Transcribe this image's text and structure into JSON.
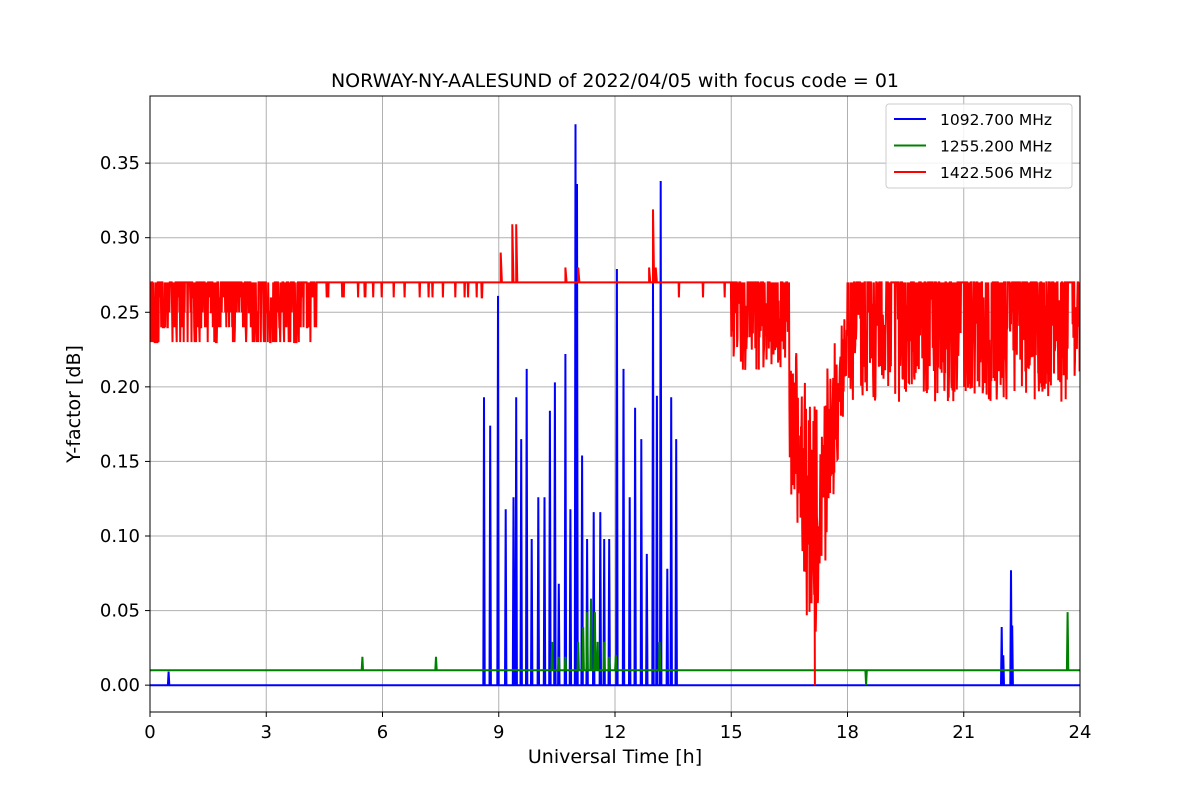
{
  "chart_data": {
    "type": "line",
    "title": "NORWAY-NY-AALESUND of 2022/04/05 with focus code = 01",
    "xlabel": "Universal Time [h]",
    "ylabel": "Y-factor [dB]",
    "xlim": [
      0,
      24
    ],
    "ylim": [
      -0.018,
      0.395
    ],
    "xticks": [
      0,
      3,
      6,
      9,
      12,
      15,
      18,
      21,
      24
    ],
    "xtick_labels": [
      "0",
      "3",
      "6",
      "9",
      "12",
      "15",
      "18",
      "21",
      "24"
    ],
    "yticks": [
      0.0,
      0.05,
      0.1,
      0.15,
      0.2,
      0.25,
      0.3,
      0.35
    ],
    "ytick_labels": [
      "0.00",
      "0.05",
      "0.10",
      "0.15",
      "0.20",
      "0.25",
      "0.30",
      "0.35"
    ],
    "grid": true,
    "legend_position": "top-right",
    "series": [
      {
        "name": "1092.700 MHz",
        "color": "#0000ff",
        "baseline": 0.0,
        "spikes": [
          [
            0.48,
            0.009
          ],
          [
            8.62,
            0.193
          ],
          [
            8.78,
            0.174
          ],
          [
            8.98,
            0.261
          ],
          [
            9.18,
            0.118
          ],
          [
            9.38,
            0.126
          ],
          [
            9.45,
            0.193
          ],
          [
            9.58,
            0.165
          ],
          [
            9.72,
            0.212
          ],
          [
            9.85,
            0.098
          ],
          [
            10.02,
            0.126
          ],
          [
            10.18,
            0.126
          ],
          [
            10.32,
            0.184
          ],
          [
            10.45,
            0.203
          ],
          [
            10.55,
            0.068
          ],
          [
            10.72,
            0.222
          ],
          [
            10.85,
            0.118
          ],
          [
            10.98,
            0.376
          ],
          [
            11.02,
            0.336
          ],
          [
            11.15,
            0.154
          ],
          [
            11.28,
            0.098
          ],
          [
            11.45,
            0.116
          ],
          [
            11.62,
            0.116
          ],
          [
            11.72,
            0.098
          ],
          [
            11.85,
            0.098
          ],
          [
            12.05,
            0.279
          ],
          [
            12.22,
            0.212
          ],
          [
            12.38,
            0.126
          ],
          [
            12.52,
            0.186
          ],
          [
            12.68,
            0.165
          ],
          [
            12.82,
            0.088
          ],
          [
            12.98,
            0.272
          ],
          [
            13.08,
            0.194
          ],
          [
            13.18,
            0.338
          ],
          [
            13.35,
            0.078
          ],
          [
            13.45,
            0.193
          ],
          [
            13.58,
            0.165
          ],
          [
            21.98,
            0.039
          ],
          [
            22.02,
            0.02
          ],
          [
            22.22,
            0.077
          ],
          [
            22.25,
            0.04
          ]
        ]
      },
      {
        "name": "1255.200 MHz",
        "color": "#008000",
        "baseline": 0.01,
        "spikes": [
          [
            5.48,
            0.019
          ],
          [
            7.38,
            0.019
          ],
          [
            10.38,
            0.029
          ],
          [
            10.55,
            0.019
          ],
          [
            10.72,
            0.019
          ],
          [
            11.05,
            0.029
          ],
          [
            11.18,
            0.039
          ],
          [
            11.28,
            0.049
          ],
          [
            11.38,
            0.058
          ],
          [
            11.48,
            0.049
          ],
          [
            11.55,
            0.029
          ],
          [
            11.72,
            0.029
          ],
          [
            11.85,
            0.019
          ],
          [
            12.02,
            0.02
          ],
          [
            13.15,
            0.029
          ],
          [
            18.48,
            0.0
          ],
          [
            23.68,
            0.049
          ]
        ]
      },
      {
        "name": "1422.506 MHz",
        "color": "#ff0000",
        "baseline": 0.27
      }
    ]
  }
}
